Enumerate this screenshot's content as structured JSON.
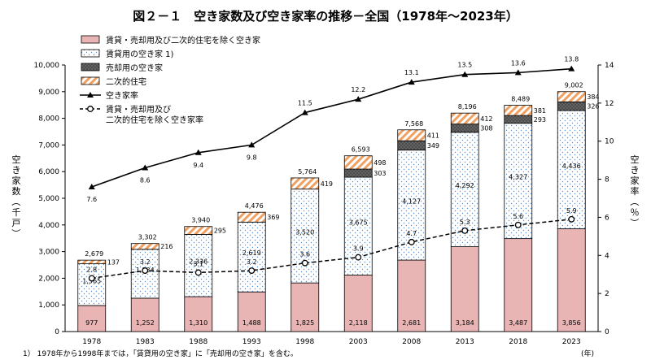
{
  "title": "図２－１　空き家数及び空き家率の推移－全国（1978年～2023年）",
  "footnote": "1） 1978年から1998年までは，「賃貸用の空き家」に「売却用の空き家」を含む。",
  "left_axis_label": "空き家数（千戸）",
  "right_axis_label": "空き家率（％）",
  "x_unit": "(年)",
  "colors": {
    "rent_sale_secondary_excluded": "#e8b4b4",
    "rental": "#dbe9f4",
    "for_sale": "#4d4d4d",
    "secondary": "#f0a060",
    "line": "#000000"
  },
  "chart_data": {
    "type": "bar",
    "stacked": true,
    "categories": [
      "1978",
      "1983",
      "1988",
      "1993",
      "1998",
      "2003",
      "2008",
      "2013",
      "2018",
      "2023"
    ],
    "ylim": [
      0,
      10000
    ],
    "yticks": [
      "0",
      "1,000",
      "2,000",
      "3,000",
      "4,000",
      "5,000",
      "6,000",
      "7,000",
      "8,000",
      "9,000",
      "10,000"
    ],
    "y2lim": [
      0,
      14
    ],
    "y2ticks": [
      "0",
      "2",
      "4",
      "6",
      "8",
      "10",
      "12",
      "14"
    ],
    "series": [
      {
        "name": "賃貸・売却用及び二次的住宅を除く空き家",
        "key": "other",
        "values": [
          977,
          1252,
          1310,
          1488,
          1825,
          2118,
          2681,
          3184,
          3487,
          3856
        ],
        "labels": [
          "977",
          "1,252",
          "1,310",
          "1,488",
          "1,825",
          "2,118",
          "2,681",
          "3,184",
          "3,487",
          "3,856"
        ]
      },
      {
        "name": "賃貸用の空き家 1)",
        "key": "rental",
        "values": [
          1565,
          1834,
          2336,
          2619,
          3520,
          3675,
          4127,
          4292,
          4327,
          4436
        ],
        "labels": [
          "1,565",
          "1,834",
          "2,336",
          "2,619",
          "3,520",
          "3,675",
          "4,127",
          "4,292",
          "4,327",
          "4,436"
        ]
      },
      {
        "name": "売却用の空き家",
        "key": "sale",
        "values": [
          0,
          0,
          0,
          0,
          0,
          303,
          349,
          308,
          293,
          326
        ],
        "labels": [
          "",
          "",
          "",
          "",
          "",
          "303",
          "349",
          "308",
          "293",
          "326"
        ]
      },
      {
        "name": "二次的住宅",
        "key": "secondary",
        "values": [
          137,
          216,
          295,
          369,
          419,
          498,
          411,
          412,
          381,
          384
        ],
        "labels": [
          "137",
          "216",
          "295",
          "369",
          "419",
          "498",
          "411",
          "412",
          "381",
          "384"
        ]
      }
    ],
    "totals": [
      "2,679",
      "3,302",
      "3,940",
      "4,476",
      "5,764",
      "6,593",
      "7,568",
      "8,196",
      "8,489",
      "9,002"
    ],
    "lines": [
      {
        "name": "空き家率",
        "axis": "right",
        "style": "solid-triangle",
        "values": [
          7.6,
          8.6,
          9.4,
          9.8,
          11.5,
          12.2,
          13.1,
          13.5,
          13.6,
          13.8
        ],
        "labels": [
          "7.6",
          "8.6",
          "9.4",
          "9.8",
          "11.5",
          "12.2",
          "13.1",
          "13.5",
          "13.6",
          "13.8"
        ]
      },
      {
        "name": "賃貸・売却用及び二次的住宅を除く空き家率",
        "legend": "賃貸・売却用及び\n二次的住宅を除く空き家率",
        "axis": "right",
        "style": "dashed-circle",
        "values": [
          2.8,
          3.2,
          3.1,
          3.2,
          3.6,
          3.9,
          4.7,
          5.3,
          5.6,
          5.9
        ],
        "labels": [
          "2.8",
          "3.2",
          "3.1",
          "3.2",
          "3.6",
          "3.9",
          "4.7",
          "5.3",
          "5.6",
          "5.9"
        ]
      }
    ]
  }
}
